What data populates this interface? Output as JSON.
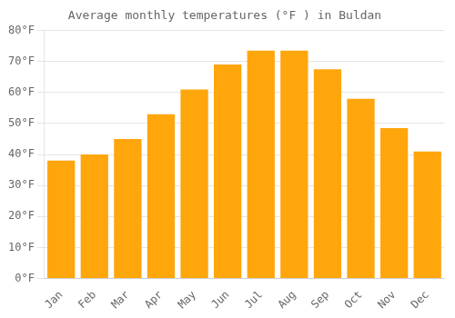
{
  "chart_data": {
    "type": "bar",
    "title": "Average monthly temperatures (°F ) in Buldan",
    "categories": [
      "Jan",
      "Feb",
      "Mar",
      "Apr",
      "May",
      "Jun",
      "Jul",
      "Aug",
      "Sep",
      "Oct",
      "Nov",
      "Dec"
    ],
    "values": [
      38,
      40,
      45,
      53,
      61,
      69,
      73.5,
      73.5,
      67.5,
      58,
      48.5,
      41
    ],
    "color": "#ffa60d",
    "ylim": [
      0,
      80
    ],
    "yticks": [
      {
        "value": 0,
        "label": "0°F"
      },
      {
        "value": 10,
        "label": "10°F"
      },
      {
        "value": 20,
        "label": "20°F"
      },
      {
        "value": 30,
        "label": "30°F"
      },
      {
        "value": 40,
        "label": "40°F"
      },
      {
        "value": 50,
        "label": "50°F"
      },
      {
        "value": 60,
        "label": "60°F"
      },
      {
        "value": 70,
        "label": "70°F"
      },
      {
        "value": 80,
        "label": "80°F"
      }
    ],
    "grid": true
  }
}
